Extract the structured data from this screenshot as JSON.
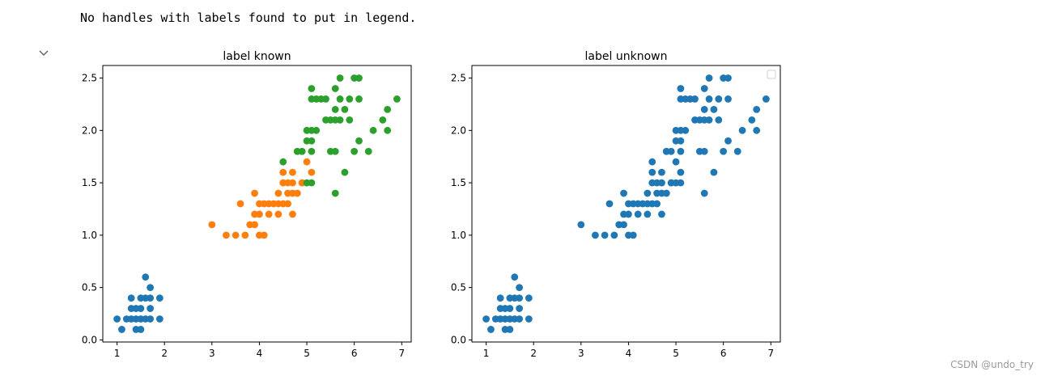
{
  "output": {
    "stdout_text": "No handles with labels found to put in legend."
  },
  "watermark": "CSDN @undo_try",
  "colors": {
    "blue": "#1f77b4",
    "orange": "#ff7f0e",
    "green": "#2ca02c"
  },
  "chart_data": [
    {
      "type": "scatter",
      "title": "label known",
      "xlim": [
        0.7,
        7.2
      ],
      "ylim": [
        -0.02,
        2.62
      ],
      "xticks": [
        1,
        2,
        3,
        4,
        5,
        6,
        7
      ],
      "xtick_labels": [
        "1",
        "2",
        "3",
        "4",
        "5",
        "6",
        "7"
      ],
      "yticks": [
        0.0,
        0.5,
        1.0,
        1.5,
        2.0,
        2.5
      ],
      "ytick_labels": [
        "0.0",
        "0.5",
        "1.0",
        "1.5",
        "2.0",
        "2.5"
      ],
      "grid": false,
      "legend": null,
      "series": [
        {
          "color": "#1f77b4",
          "points": [
            [
              1.0,
              0.2
            ],
            [
              1.1,
              0.1
            ],
            [
              1.2,
              0.2
            ],
            [
              1.3,
              0.2
            ],
            [
              1.3,
              0.3
            ],
            [
              1.3,
              0.4
            ],
            [
              1.4,
              0.1
            ],
            [
              1.4,
              0.2
            ],
            [
              1.4,
              0.3
            ],
            [
              1.5,
              0.1
            ],
            [
              1.5,
              0.2
            ],
            [
              1.5,
              0.3
            ],
            [
              1.5,
              0.4
            ],
            [
              1.6,
              0.2
            ],
            [
              1.6,
              0.4
            ],
            [
              1.6,
              0.6
            ],
            [
              1.7,
              0.2
            ],
            [
              1.7,
              0.3
            ],
            [
              1.7,
              0.4
            ],
            [
              1.7,
              0.5
            ],
            [
              1.9,
              0.2
            ],
            [
              1.9,
              0.4
            ]
          ]
        },
        {
          "color": "#ff7f0e",
          "points": [
            [
              3.0,
              1.1
            ],
            [
              3.3,
              1.0
            ],
            [
              3.5,
              1.0
            ],
            [
              3.6,
              1.3
            ],
            [
              3.7,
              1.0
            ],
            [
              3.8,
              1.1
            ],
            [
              3.9,
              1.1
            ],
            [
              3.9,
              1.2
            ],
            [
              3.9,
              1.4
            ],
            [
              4.0,
              1.0
            ],
            [
              4.0,
              1.2
            ],
            [
              4.0,
              1.3
            ],
            [
              4.1,
              1.0
            ],
            [
              4.1,
              1.3
            ],
            [
              4.2,
              1.2
            ],
            [
              4.2,
              1.3
            ],
            [
              4.3,
              1.3
            ],
            [
              4.4,
              1.2
            ],
            [
              4.4,
              1.3
            ],
            [
              4.4,
              1.4
            ],
            [
              4.5,
              1.3
            ],
            [
              4.5,
              1.5
            ],
            [
              4.6,
              1.3
            ],
            [
              4.6,
              1.4
            ],
            [
              4.6,
              1.5
            ],
            [
              4.7,
              1.2
            ],
            [
              4.7,
              1.4
            ],
            [
              4.7,
              1.5
            ],
            [
              4.8,
              1.4
            ],
            [
              4.8,
              1.8
            ],
            [
              4.9,
              1.5
            ],
            [
              5.0,
              1.7
            ],
            [
              5.1,
              1.6
            ],
            [
              4.5,
              1.6
            ],
            [
              4.7,
              1.6
            ],
            [
              4.9,
              1.5
            ]
          ]
        },
        {
          "color": "#2ca02c",
          "points": [
            [
              4.5,
              1.7
            ],
            [
              4.8,
              1.8
            ],
            [
              4.9,
              1.8
            ],
            [
              5.0,
              1.5
            ],
            [
              5.0,
              2.0
            ],
            [
              5.0,
              1.9
            ],
            [
              5.1,
              1.5
            ],
            [
              5.1,
              1.8
            ],
            [
              5.1,
              1.9
            ],
            [
              5.1,
              2.0
            ],
            [
              5.1,
              2.3
            ],
            [
              5.1,
              2.4
            ],
            [
              5.2,
              2.0
            ],
            [
              5.2,
              2.3
            ],
            [
              5.3,
              2.3
            ],
            [
              5.4,
              2.1
            ],
            [
              5.4,
              2.3
            ],
            [
              5.5,
              1.8
            ],
            [
              5.5,
              2.1
            ],
            [
              5.6,
              1.4
            ],
            [
              5.6,
              1.8
            ],
            [
              5.6,
              2.1
            ],
            [
              5.6,
              2.2
            ],
            [
              5.6,
              2.4
            ],
            [
              5.7,
              2.1
            ],
            [
              5.7,
              2.3
            ],
            [
              5.7,
              2.5
            ],
            [
              5.8,
              1.6
            ],
            [
              5.8,
              2.2
            ],
            [
              5.9,
              2.1
            ],
            [
              5.9,
              2.3
            ],
            [
              6.0,
              1.8
            ],
            [
              6.0,
              2.5
            ],
            [
              6.1,
              1.9
            ],
            [
              6.1,
              2.3
            ],
            [
              6.1,
              2.5
            ],
            [
              6.3,
              1.8
            ],
            [
              6.4,
              2.0
            ],
            [
              6.6,
              2.1
            ],
            [
              6.7,
              2.0
            ],
            [
              6.7,
              2.2
            ],
            [
              6.9,
              2.3
            ]
          ]
        }
      ]
    },
    {
      "type": "scatter",
      "title": "label unknown",
      "xlim": [
        0.7,
        7.2
      ],
      "ylim": [
        -0.02,
        2.62
      ],
      "xticks": [
        1,
        2,
        3,
        4,
        5,
        6,
        7
      ],
      "xtick_labels": [
        "1",
        "2",
        "3",
        "4",
        "5",
        "6",
        "7"
      ],
      "yticks": [
        0.0,
        0.5,
        1.0,
        1.5,
        2.0,
        2.5
      ],
      "ytick_labels": [
        "0.0",
        "0.5",
        "1.0",
        "1.5",
        "2.0",
        "2.5"
      ],
      "grid": false,
      "legend": "top-right (empty)",
      "series": [
        {
          "color": "#1f77b4",
          "points": [
            [
              1.0,
              0.2
            ],
            [
              1.1,
              0.1
            ],
            [
              1.2,
              0.2
            ],
            [
              1.3,
              0.2
            ],
            [
              1.3,
              0.3
            ],
            [
              1.3,
              0.4
            ],
            [
              1.4,
              0.1
            ],
            [
              1.4,
              0.2
            ],
            [
              1.4,
              0.3
            ],
            [
              1.5,
              0.1
            ],
            [
              1.5,
              0.2
            ],
            [
              1.5,
              0.3
            ],
            [
              1.5,
              0.4
            ],
            [
              1.6,
              0.2
            ],
            [
              1.6,
              0.4
            ],
            [
              1.6,
              0.6
            ],
            [
              1.7,
              0.2
            ],
            [
              1.7,
              0.3
            ],
            [
              1.7,
              0.4
            ],
            [
              1.7,
              0.5
            ],
            [
              1.9,
              0.2
            ],
            [
              1.9,
              0.4
            ],
            [
              3.0,
              1.1
            ],
            [
              3.3,
              1.0
            ],
            [
              3.5,
              1.0
            ],
            [
              3.6,
              1.3
            ],
            [
              3.7,
              1.0
            ],
            [
              3.8,
              1.1
            ],
            [
              3.9,
              1.1
            ],
            [
              3.9,
              1.2
            ],
            [
              3.9,
              1.4
            ],
            [
              4.0,
              1.0
            ],
            [
              4.0,
              1.2
            ],
            [
              4.0,
              1.3
            ],
            [
              4.1,
              1.0
            ],
            [
              4.1,
              1.3
            ],
            [
              4.2,
              1.2
            ],
            [
              4.2,
              1.3
            ],
            [
              4.3,
              1.3
            ],
            [
              4.4,
              1.2
            ],
            [
              4.4,
              1.3
            ],
            [
              4.4,
              1.4
            ],
            [
              4.5,
              1.3
            ],
            [
              4.5,
              1.5
            ],
            [
              4.6,
              1.3
            ],
            [
              4.6,
              1.4
            ],
            [
              4.6,
              1.5
            ],
            [
              4.7,
              1.2
            ],
            [
              4.7,
              1.4
            ],
            [
              4.7,
              1.5
            ],
            [
              4.8,
              1.4
            ],
            [
              4.8,
              1.8
            ],
            [
              4.9,
              1.5
            ],
            [
              5.0,
              1.7
            ],
            [
              5.1,
              1.6
            ],
            [
              4.5,
              1.6
            ],
            [
              4.7,
              1.6
            ],
            [
              4.9,
              1.5
            ],
            [
              4.5,
              1.7
            ],
            [
              4.8,
              1.8
            ],
            [
              4.9,
              1.8
            ],
            [
              5.0,
              1.5
            ],
            [
              5.0,
              2.0
            ],
            [
              5.0,
              1.9
            ],
            [
              5.1,
              1.5
            ],
            [
              5.1,
              1.8
            ],
            [
              5.1,
              1.9
            ],
            [
              5.1,
              2.0
            ],
            [
              5.1,
              2.3
            ],
            [
              5.1,
              2.4
            ],
            [
              5.2,
              2.0
            ],
            [
              5.2,
              2.3
            ],
            [
              5.3,
              2.3
            ],
            [
              5.4,
              2.1
            ],
            [
              5.4,
              2.3
            ],
            [
              5.5,
              1.8
            ],
            [
              5.5,
              2.1
            ],
            [
              5.6,
              1.4
            ],
            [
              5.6,
              1.8
            ],
            [
              5.6,
              2.1
            ],
            [
              5.6,
              2.2
            ],
            [
              5.6,
              2.4
            ],
            [
              5.7,
              2.1
            ],
            [
              5.7,
              2.3
            ],
            [
              5.7,
              2.5
            ],
            [
              5.8,
              1.6
            ],
            [
              5.8,
              2.2
            ],
            [
              5.9,
              2.1
            ],
            [
              5.9,
              2.3
            ],
            [
              6.0,
              1.8
            ],
            [
              6.0,
              2.5
            ],
            [
              6.1,
              1.9
            ],
            [
              6.1,
              2.3
            ],
            [
              6.1,
              2.5
            ],
            [
              6.3,
              1.8
            ],
            [
              6.4,
              2.0
            ],
            [
              6.6,
              2.1
            ],
            [
              6.7,
              2.0
            ],
            [
              6.7,
              2.2
            ],
            [
              6.9,
              2.3
            ]
          ]
        }
      ]
    }
  ]
}
